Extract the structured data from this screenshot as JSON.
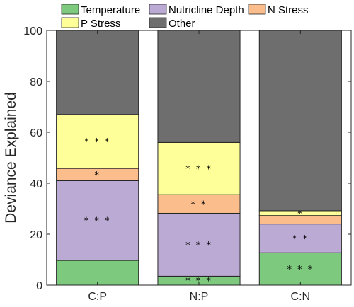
{
  "chart_data": {
    "type": "bar",
    "stacked": true,
    "categories": [
      "C:P",
      "N:P",
      "C:N"
    ],
    "ylabel": "Deviance Explained",
    "ylim": [
      0,
      100
    ],
    "yticks": [
      0,
      20,
      40,
      60,
      80,
      100
    ],
    "grid": false,
    "legend_position": "top",
    "series": [
      {
        "name": "Temperature",
        "color": "#7dc97d",
        "values": [
          9.7,
          3.5,
          12.7
        ],
        "significance": [
          "",
          "* * *",
          "* * *"
        ]
      },
      {
        "name": "Nutricline Depth",
        "color": "#bbaad4",
        "values": [
          31.3,
          24.7,
          11.3
        ],
        "significance": [
          "* * *",
          "* * *",
          "* *"
        ]
      },
      {
        "name": "N Stress",
        "color": "#fbbd8c",
        "values": [
          4.8,
          7.3,
          3.3
        ],
        "significance": [
          "*",
          "* *",
          ""
        ]
      },
      {
        "name": "P Stress",
        "color": "#ffff99",
        "values": [
          21.2,
          20.5,
          1.9
        ],
        "significance": [
          "* * *",
          "* * *",
          "*"
        ]
      },
      {
        "name": "Other",
        "color": "#6e6e6e",
        "values": [
          33.0,
          44.0,
          70.8
        ],
        "significance": [
          "",
          "",
          ""
        ]
      }
    ]
  }
}
